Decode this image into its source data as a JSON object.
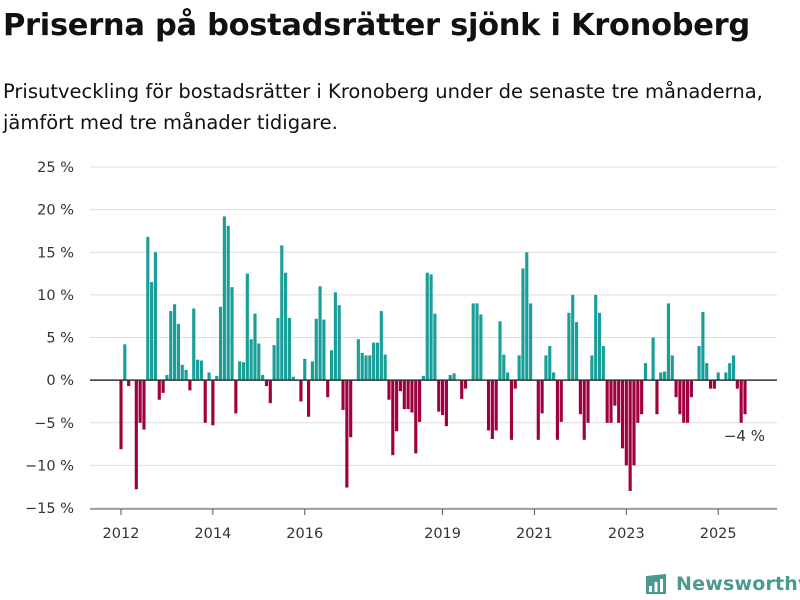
{
  "title": "Priserna på bostadsrätter sjönk i Kronoberg",
  "subtitle": "Prisutveckling för bostadsrätter i Kronoberg under de senaste tre månaderna, jämfört med tre månader tidigare.",
  "brand": {
    "name": "Newsworthy",
    "icon": "newsworthy-chart-icon"
  },
  "colors": {
    "positive": "#1a9e98",
    "negative": "#a0003f",
    "grid": "#dedede",
    "axis": "#333333",
    "brand": "#4a9a90"
  },
  "chart_data": {
    "type": "bar",
    "x_ticks": [
      "2012",
      "2014",
      "2016",
      "2019",
      "2021",
      "2023",
      "2025"
    ],
    "y_ticks": [
      "25 %",
      "20 %",
      "15 %",
      "10 %",
      "5 %",
      "0 %",
      "−5 %",
      "−10 %",
      "−15 %"
    ],
    "ylim": [
      -15,
      25
    ],
    "y_unit": "%",
    "grid": true,
    "last_value_label": "−4 %",
    "values": [
      -8.1,
      4.2,
      -0.7,
      0,
      -12.8,
      -5.0,
      -5.8,
      16.8,
      11.5,
      15.0,
      -2.3,
      -1.5,
      0.6,
      8.1,
      8.9,
      6.6,
      1.8,
      1.2,
      -1.2,
      8.4,
      2.4,
      2.3,
      -5.0,
      0.9,
      -5.3,
      0.5,
      8.6,
      19.2,
      18.1,
      10.9,
      -3.9,
      2.2,
      2.1,
      12.5,
      4.8,
      7.8,
      4.3,
      0.6,
      -0.7,
      -2.7,
      4.1,
      7.3,
      15.8,
      12.6,
      7.3,
      0.4,
      0,
      -2.5,
      2.5,
      -4.3,
      2.2,
      7.2,
      11.0,
      7.1,
      -2.0,
      3.5,
      10.3,
      8.8,
      -3.5,
      -12.6,
      -6.7,
      0,
      4.8,
      3.2,
      2.9,
      2.9,
      4.4,
      4.4,
      8.1,
      3.0,
      -2.3,
      -8.8,
      -6.0,
      -1.3,
      -3.4,
      -3.4,
      -3.8,
      -8.6,
      -4.9,
      0.5,
      12.6,
      12.4,
      7.8,
      -3.7,
      -4.1,
      -5.4,
      0.6,
      0.8,
      0,
      -2.2,
      -1.0,
      0,
      9.0,
      9.0,
      7.7,
      0,
      -5.9,
      -6.9,
      -5.9,
      6.9,
      3.0,
      0.9,
      -7.0,
      -1.0,
      2.9,
      13.1,
      15.0,
      9.0,
      0,
      -7.0,
      -3.9,
      2.9,
      4.0,
      0.9,
      -7.0,
      -4.9,
      0,
      7.9,
      10.0,
      6.8,
      -4.0,
      -7.0,
      -5.0,
      2.9,
      10.0,
      7.9,
      4.0,
      -5.0,
      -5.0,
      -3.0,
      -5.0,
      -8.0,
      -10.0,
      -13.0,
      -10.0,
      -5.0,
      -4.0,
      2.0,
      0,
      5.0,
      -4.0,
      0.9,
      1.0,
      9.0,
      2.9,
      -2.0,
      -4.0,
      -5.0,
      -5.0,
      -2.0,
      0,
      4.0,
      8.0,
      2.0,
      -1.0,
      -1.0,
      0.9,
      0,
      0.9,
      2.0,
      2.9,
      -1.0,
      -5.0,
      -4.0
    ]
  }
}
